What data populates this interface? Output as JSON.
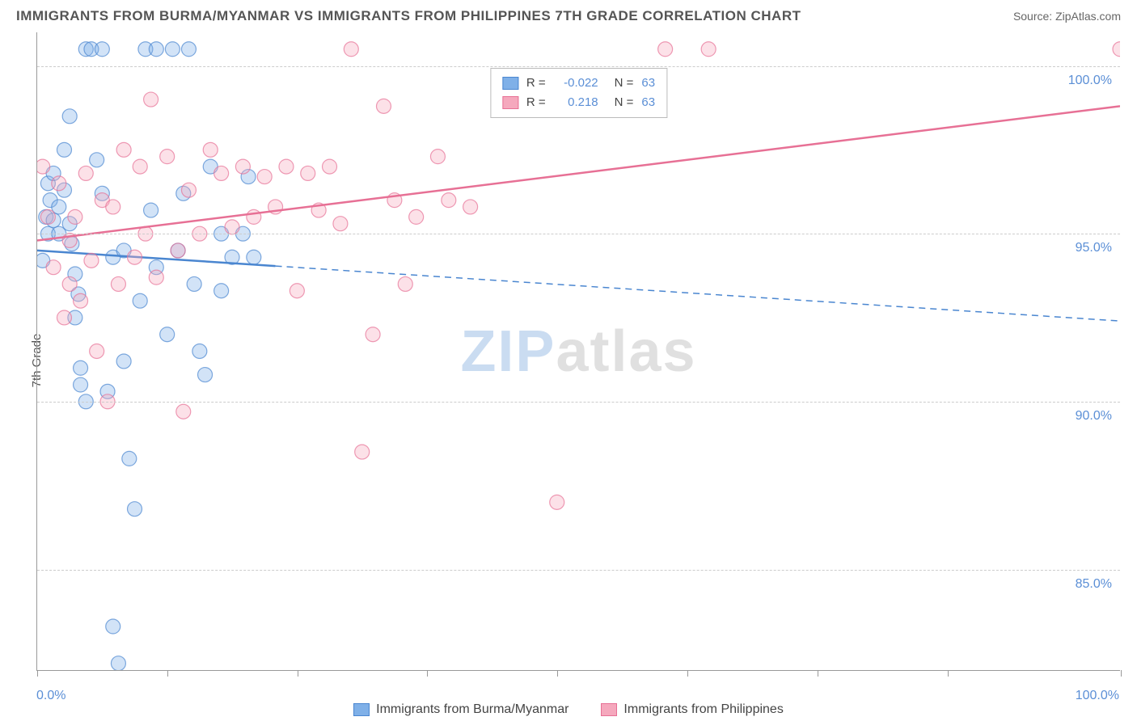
{
  "title": "IMMIGRANTS FROM BURMA/MYANMAR VS IMMIGRANTS FROM PHILIPPINES 7TH GRADE CORRELATION CHART",
  "source": "Source: ZipAtlas.com",
  "y_axis_label": "7th Grade",
  "watermark_zip": "ZIP",
  "watermark_atlas": "atlas",
  "chart": {
    "type": "scatter",
    "xlim": [
      0,
      100
    ],
    "ylim": [
      82,
      101
    ],
    "x_ticks": [
      0,
      12,
      24,
      36,
      48,
      60,
      72,
      84,
      100
    ],
    "x_tick_labels": {
      "0": "0.0%",
      "100": "100.0%"
    },
    "y_ticks": [
      85,
      90,
      95,
      100
    ],
    "y_tick_labels": [
      "85.0%",
      "90.0%",
      "95.0%",
      "100.0%"
    ],
    "background_color": "#ffffff",
    "grid_color": "#cccccc",
    "axis_color": "#999999",
    "tick_label_color": "#5b8fd6",
    "marker_radius": 9
  },
  "series": [
    {
      "name": "Immigrants from Burma/Myanmar",
      "color_fill": "#7fb0e8",
      "color_stroke": "#4a86d0",
      "R": "-0.022",
      "N": "63",
      "trend": {
        "x1": 0,
        "y1": 94.5,
        "x2": 100,
        "y2": 92.4,
        "solid_to_x": 22,
        "width": 2.5
      },
      "points": [
        [
          0.5,
          94.2
        ],
        [
          0.8,
          95.5
        ],
        [
          1.0,
          96.5
        ],
        [
          1.2,
          96.0
        ],
        [
          1.0,
          95.0
        ],
        [
          1.5,
          96.8
        ],
        [
          1.5,
          95.4
        ],
        [
          2.0,
          95.8
        ],
        [
          2.0,
          95.0
        ],
        [
          2.5,
          97.5
        ],
        [
          2.5,
          96.3
        ],
        [
          3.0,
          98.5
        ],
        [
          3.0,
          95.3
        ],
        [
          3.2,
          94.7
        ],
        [
          3.5,
          93.8
        ],
        [
          3.5,
          92.5
        ],
        [
          3.8,
          93.2
        ],
        [
          4.0,
          91.0
        ],
        [
          4.0,
          90.5
        ],
        [
          4.5,
          90.0
        ],
        [
          4.5,
          100.5
        ],
        [
          5.0,
          100.5
        ],
        [
          5.5,
          97.2
        ],
        [
          6.0,
          100.5
        ],
        [
          6.0,
          96.2
        ],
        [
          6.5,
          90.3
        ],
        [
          7.0,
          94.3
        ],
        [
          7.0,
          83.3
        ],
        [
          7.5,
          82.2
        ],
        [
          8.0,
          91.2
        ],
        [
          8.0,
          94.5
        ],
        [
          8.5,
          88.3
        ],
        [
          9.0,
          86.8
        ],
        [
          9.5,
          93.0
        ],
        [
          10.0,
          100.5
        ],
        [
          10.5,
          95.7
        ],
        [
          11.0,
          100.5
        ],
        [
          11.0,
          94.0
        ],
        [
          12.0,
          92.0
        ],
        [
          12.5,
          100.5
        ],
        [
          13.0,
          94.5
        ],
        [
          13.5,
          96.2
        ],
        [
          14.0,
          100.5
        ],
        [
          14.5,
          93.5
        ],
        [
          15.0,
          91.5
        ],
        [
          15.5,
          90.8
        ],
        [
          16.0,
          97.0
        ],
        [
          17.0,
          93.3
        ],
        [
          17.0,
          95.0
        ],
        [
          18.0,
          94.3
        ],
        [
          19.0,
          95.0
        ],
        [
          19.5,
          96.7
        ],
        [
          20.0,
          94.3
        ]
      ]
    },
    {
      "name": "Immigrants from Philippines",
      "color_fill": "#f5a8bd",
      "color_stroke": "#e77095",
      "R": "0.218",
      "N": "63",
      "trend": {
        "x1": 0,
        "y1": 94.8,
        "x2": 100,
        "y2": 98.8,
        "solid_to_x": 100,
        "width": 2.5
      },
      "points": [
        [
          0.5,
          97.0
        ],
        [
          1.0,
          95.5
        ],
        [
          1.5,
          94.0
        ],
        [
          2.0,
          96.5
        ],
        [
          2.5,
          92.5
        ],
        [
          3.0,
          94.8
        ],
        [
          3.0,
          93.5
        ],
        [
          3.5,
          95.5
        ],
        [
          4.0,
          93.0
        ],
        [
          4.5,
          96.8
        ],
        [
          5.0,
          94.2
        ],
        [
          5.5,
          91.5
        ],
        [
          6.0,
          96.0
        ],
        [
          6.5,
          90.0
        ],
        [
          7.0,
          95.8
        ],
        [
          7.5,
          93.5
        ],
        [
          8.0,
          97.5
        ],
        [
          9.0,
          94.3
        ],
        [
          9.5,
          97.0
        ],
        [
          10.0,
          95.0
        ],
        [
          10.5,
          99.0
        ],
        [
          11.0,
          93.7
        ],
        [
          12.0,
          97.3
        ],
        [
          13.0,
          94.5
        ],
        [
          13.5,
          89.7
        ],
        [
          14.0,
          96.3
        ],
        [
          15.0,
          95.0
        ],
        [
          16.0,
          97.5
        ],
        [
          17.0,
          96.8
        ],
        [
          18.0,
          95.2
        ],
        [
          19.0,
          97.0
        ],
        [
          20.0,
          95.5
        ],
        [
          21.0,
          96.7
        ],
        [
          22.0,
          95.8
        ],
        [
          23.0,
          97.0
        ],
        [
          24.0,
          93.3
        ],
        [
          25.0,
          96.8
        ],
        [
          26.0,
          95.7
        ],
        [
          27.0,
          97.0
        ],
        [
          28.0,
          95.3
        ],
        [
          29.0,
          100.5
        ],
        [
          30.0,
          88.5
        ],
        [
          31.0,
          92.0
        ],
        [
          32.0,
          98.8
        ],
        [
          33.0,
          96.0
        ],
        [
          34.0,
          93.5
        ],
        [
          35.0,
          95.5
        ],
        [
          37.0,
          97.3
        ],
        [
          38.0,
          96.0
        ],
        [
          40.0,
          95.8
        ],
        [
          48.0,
          87.0
        ],
        [
          58.0,
          100.5
        ],
        [
          62.0,
          100.5
        ],
        [
          100.0,
          100.5
        ]
      ]
    }
  ],
  "legend_top": {
    "r_label": "R =",
    "n_label": "N ="
  },
  "legend_bottom": [
    {
      "label": "Immigrants from Burma/Myanmar",
      "fill": "#7fb0e8",
      "stroke": "#4a86d0"
    },
    {
      "label": "Immigrants from Philippines",
      "fill": "#f5a8bd",
      "stroke": "#e77095"
    }
  ]
}
